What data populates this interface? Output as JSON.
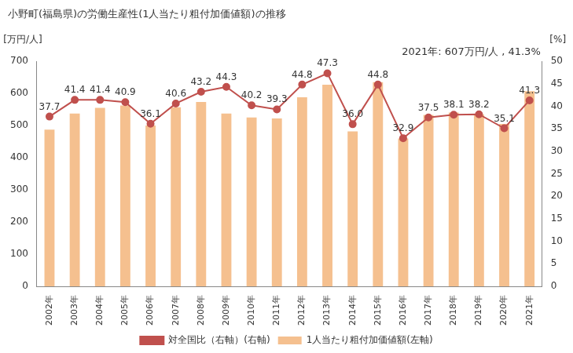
{
  "chart_data": {
    "type": "bar",
    "title": "小野町(福島県)の労働生産性(1人当たり粗付加価値額)の推移",
    "y_label": "[万円/人]",
    "y2_label": "[%]",
    "annotation": "2021年: 607万円/人 , 41.3%",
    "categories": [
      "2002年",
      "2003年",
      "2004年",
      "2005年",
      "2006年",
      "2007年",
      "2008年",
      "2009年",
      "2010年",
      "2011年",
      "2012年",
      "2013年",
      "2014年",
      "2015年",
      "2016年",
      "2017年",
      "2018年",
      "2019年",
      "2020年",
      "2021年"
    ],
    "series": [
      {
        "name": "1人当たり粗付加価値額(左軸)",
        "type": "bar",
        "color": "#f5c08f",
        "values": [
          487,
          537,
          555,
          562,
          500,
          557,
          573,
          537,
          525,
          522,
          588,
          627,
          482,
          635,
          460,
          533,
          540,
          535,
          505,
          607
        ]
      },
      {
        "name": "対全国比（右軸）(右軸)",
        "type": "line",
        "axis": "y2",
        "color": "#c0504d",
        "marker": "circle",
        "data_labels": true,
        "values": [
          37.7,
          41.4,
          41.4,
          40.9,
          36.1,
          40.6,
          43.2,
          44.3,
          40.2,
          39.3,
          44.8,
          47.3,
          36.0,
          44.8,
          32.9,
          37.5,
          38.1,
          38.2,
          35.1,
          41.3
        ],
        "value_labels": [
          "37.7",
          "41.4",
          "41.4",
          "40.9",
          "36.1",
          "40.6",
          "43.2",
          "44.3",
          "40.2",
          "39.3",
          "44.8",
          "47.3",
          "36.0",
          "44.8",
          "32.9",
          "37.5",
          "38.1",
          "38.2",
          "35.1",
          "41.3"
        ]
      }
    ],
    "ylim": [
      0,
      700
    ],
    "yticks": [
      0,
      100,
      200,
      300,
      400,
      500,
      600,
      700
    ],
    "y2lim": [
      0,
      50
    ],
    "y2ticks": [
      0,
      5,
      10,
      15,
      20,
      25,
      30,
      35,
      40,
      45,
      50
    ],
    "grid": false,
    "legend": "bottom"
  }
}
